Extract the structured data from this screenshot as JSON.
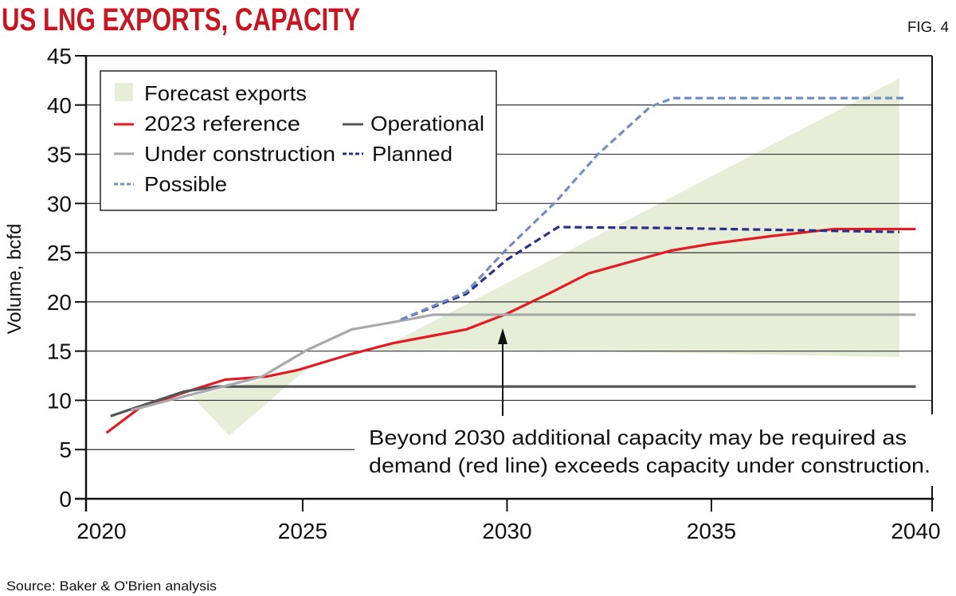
{
  "header": {
    "title": "US LNG EXPORTS, CAPACITY",
    "fig": "FIG. 4"
  },
  "footer": {
    "source": "Source: Baker & O'Brien analysis"
  },
  "annotation": {
    "line1": "Beyond 2030 additional capacity may be required as",
    "line2": "demand (red line) exceeds capacity under construction."
  },
  "chart_data": {
    "type": "line",
    "title": "US LNG EXPORTS, CAPACITY",
    "xlabel": "",
    "ylabel": "Volume, bcfd",
    "xlim": [
      2019.7,
      2040.4
    ],
    "ylim": [
      0,
      45
    ],
    "xticks": [
      "2020",
      "2025",
      "2030",
      "2035",
      "2040"
    ],
    "yticks": [
      "0",
      "5",
      "10",
      "15",
      "20",
      "25",
      "30",
      "35",
      "40",
      "45"
    ],
    "grid": "horizontal",
    "legend_position": "top-left",
    "area": {
      "name": "Forecast exports",
      "color": "#e6eed8",
      "polygons": [
        [
          [
            2022.3,
            10.4
          ],
          [
            2023.2,
            6.4
          ],
          [
            2025.1,
            13.2
          ]
        ],
        [
          [
            2026.8,
            15.0
          ],
          [
            2039.6,
            42.7
          ],
          [
            2039.6,
            14.4
          ],
          [
            2029.3,
            15.2
          ]
        ]
      ]
    },
    "series": [
      {
        "name": "2023 reference",
        "color": "#e31b23",
        "dash": "solid",
        "points": [
          [
            2020.2,
            6.7
          ],
          [
            2021.0,
            9.2
          ],
          [
            2022.1,
            10.8
          ],
          [
            2023.1,
            12.1
          ],
          [
            2024.1,
            12.4
          ],
          [
            2024.9,
            13.1
          ],
          [
            2026.1,
            14.6
          ],
          [
            2027.2,
            15.8
          ],
          [
            2028.1,
            16.5
          ],
          [
            2029.0,
            17.2
          ],
          [
            2030.0,
            18.8
          ],
          [
            2031.0,
            20.8
          ],
          [
            2032.0,
            22.9
          ],
          [
            2034.0,
            25.2
          ],
          [
            2035.0,
            25.9
          ],
          [
            2036.5,
            26.7
          ],
          [
            2038.0,
            27.4
          ],
          [
            2040.0,
            27.4
          ]
        ]
      },
      {
        "name": "Operational",
        "color": "#555555",
        "dash": "solid",
        "points": [
          [
            2020.3,
            8.4
          ],
          [
            2022.1,
            10.9
          ],
          [
            2022.9,
            11.4
          ],
          [
            2040.0,
            11.4
          ]
        ]
      },
      {
        "name": "Under construction",
        "color": "#a7a8aa",
        "dash": "solid",
        "points": [
          [
            2020.8,
            9.0
          ],
          [
            2022.1,
            10.4
          ],
          [
            2024.0,
            12.4
          ],
          [
            2025.1,
            15.1
          ],
          [
            2026.2,
            17.2
          ],
          [
            2027.3,
            18.0
          ],
          [
            2028.2,
            18.7
          ],
          [
            2040.0,
            18.7
          ]
        ]
      },
      {
        "name": "Planned",
        "color": "#2b2f8c",
        "dash": "dashed",
        "points": [
          [
            2027.4,
            18.2
          ],
          [
            2029.0,
            20.8
          ],
          [
            2030.0,
            24.3
          ],
          [
            2031.25,
            27.6
          ],
          [
            2034.0,
            27.5
          ],
          [
            2039.6,
            27.1
          ]
        ]
      },
      {
        "name": "Possible",
        "color": "#6f8fc6",
        "dash": "dashed",
        "points": [
          [
            2027.4,
            18.2
          ],
          [
            2029.0,
            21.0
          ],
          [
            2030.0,
            25.4
          ],
          [
            2031.2,
            30.2
          ],
          [
            2032.2,
            34.9
          ],
          [
            2033.5,
            39.8
          ],
          [
            2034.05,
            40.7
          ],
          [
            2039.75,
            40.7
          ]
        ]
      }
    ],
    "legend": {
      "forecast": "Forecast exports",
      "reference": "2023 reference",
      "operational": "Operational",
      "under_construction": "Under construction",
      "planned": "Planned",
      "possible": "Possible"
    }
  }
}
